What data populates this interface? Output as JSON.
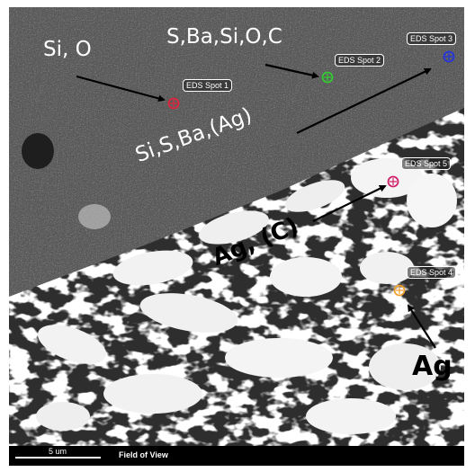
{
  "micrograph": {
    "scale_label": "5 um",
    "field_label": "Field of View"
  },
  "spots": [
    {
      "label": "EDS Spot 1",
      "color": "#e0233a"
    },
    {
      "label": "EDS Spot 2",
      "color": "#33cc33"
    },
    {
      "label": "EDS Spot 3",
      "color": "#2233dd"
    },
    {
      "label": "EDS Spot 5",
      "color": "#d0206a"
    },
    {
      "label": "EDS Spot 4",
      "color": "#f0a030"
    }
  ],
  "annotations": {
    "si_o": "Si, O",
    "s_ba_si_o_c": "S,Ba,Si,O,C",
    "si_s_ba_ag": "Si,S,Ba,(Ag)",
    "ag_c": "Ag, (C)",
    "ag": "Ag"
  }
}
